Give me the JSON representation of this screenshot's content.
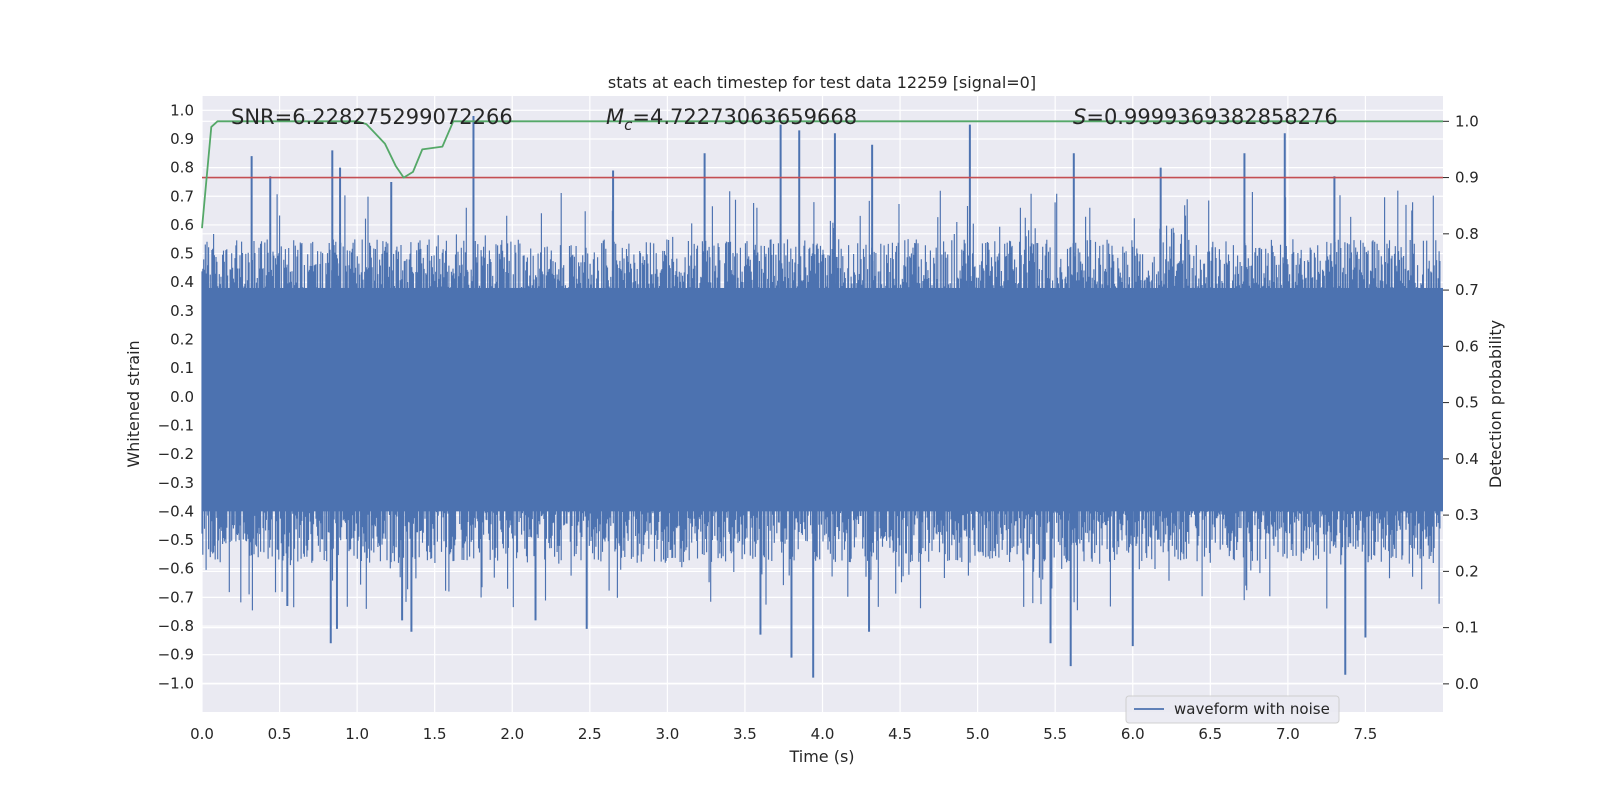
{
  "chart_data": {
    "type": "line",
    "title": "stats at each timestep for test data 12259 [signal=0]",
    "xlabel": "Time (s)",
    "ylabel": "Whitened strain",
    "y2label": "Detection probability",
    "xlim": [
      0.0,
      8.0
    ],
    "ylim": [
      -1.1,
      1.05
    ],
    "y2lim": [
      -0.05,
      1.045
    ],
    "xticks": [
      0.0,
      0.5,
      1.0,
      1.5,
      2.0,
      2.5,
      3.0,
      3.5,
      4.0,
      4.5,
      5.0,
      5.5,
      6.0,
      6.5,
      7.0,
      7.5
    ],
    "xtick_labels": [
      "0.0",
      "0.5",
      "1.0",
      "1.5",
      "2.0",
      "2.5",
      "3.0",
      "3.5",
      "4.0",
      "4.5",
      "5.0",
      "5.5",
      "6.0",
      "6.5",
      "7.0",
      "7.5"
    ],
    "yticks": [
      1.0,
      0.9,
      0.8,
      0.7,
      0.6,
      0.5,
      0.4,
      0.3,
      0.2,
      0.1,
      0.0,
      -0.1,
      -0.2,
      -0.3,
      -0.4,
      -0.5,
      -0.6,
      -0.7,
      -0.8,
      -0.9,
      -1.0
    ],
    "ytick_labels": [
      "1.0",
      "0.9",
      "0.8",
      "0.7",
      "0.6",
      "0.5",
      "0.4",
      "0.3",
      "0.2",
      "0.1",
      "0.0",
      "−0.1",
      "−0.2",
      "−0.3",
      "−0.4",
      "−0.5",
      "−0.6",
      "−0.7",
      "−0.8",
      "−0.9",
      "−1.0"
    ],
    "y2ticks": [
      1.0,
      0.9,
      0.8,
      0.7,
      0.6,
      0.5,
      0.4,
      0.3,
      0.2,
      0.1,
      0.0
    ],
    "y2tick_labels": [
      "1.0",
      "0.9",
      "0.8",
      "0.7",
      "0.6",
      "0.5",
      "0.4",
      "0.3",
      "0.2",
      "0.1",
      "0.0"
    ],
    "annotations": {
      "snr": "SNR=6.228275299072266",
      "mc_symbol": "M",
      "mc_subscript": "c",
      "mc_value": "=4.72273063659668",
      "s_symbol": "S",
      "s_value": "=0.9999369382858276"
    },
    "legend": {
      "label": "waveform with noise",
      "placement": "lower-right"
    },
    "series": [
      {
        "name": "waveform with noise",
        "axis": "left",
        "color": "#4c72b0",
        "kind": "noise",
        "noise_range": [
          -0.58,
          0.55
        ],
        "peaks": [
          [
            0.32,
            0.84
          ],
          [
            0.44,
            0.77
          ],
          [
            0.84,
            0.86
          ],
          [
            0.89,
            0.8
          ],
          [
            1.22,
            0.75
          ],
          [
            1.75,
            0.98
          ],
          [
            2.65,
            0.79
          ],
          [
            3.24,
            0.85
          ],
          [
            3.73,
            0.95
          ],
          [
            3.85,
            0.93
          ],
          [
            4.08,
            0.92
          ],
          [
            4.32,
            0.88
          ],
          [
            4.95,
            0.95
          ],
          [
            5.62,
            0.85
          ],
          [
            6.18,
            0.8
          ],
          [
            6.72,
            0.85
          ],
          [
            6.98,
            0.92
          ],
          [
            7.3,
            0.77
          ]
        ],
        "troughs": [
          [
            0.55,
            -0.73
          ],
          [
            0.83,
            -0.86
          ],
          [
            0.87,
            -0.81
          ],
          [
            1.29,
            -0.78
          ],
          [
            1.35,
            -0.82
          ],
          [
            2.15,
            -0.78
          ],
          [
            2.48,
            -0.81
          ],
          [
            3.6,
            -0.83
          ],
          [
            3.8,
            -0.91
          ],
          [
            3.94,
            -0.98
          ],
          [
            4.3,
            -0.82
          ],
          [
            5.47,
            -0.86
          ],
          [
            5.6,
            -0.94
          ],
          [
            6.0,
            -0.87
          ],
          [
            7.37,
            -0.97
          ],
          [
            7.5,
            -0.84
          ]
        ]
      },
      {
        "name": "Detection probability",
        "axis": "right",
        "color": "#55a868",
        "x": [
          0.0,
          0.06,
          0.1,
          0.13,
          0.4,
          0.8,
          1.0,
          1.06,
          1.18,
          1.25,
          1.3,
          1.36,
          1.42,
          1.55,
          1.62,
          1.7,
          2.0,
          2.5,
          3.0,
          4.0,
          5.0,
          6.0,
          7.0,
          8.0
        ],
        "y": [
          0.81,
          0.99,
          1.0,
          1.0,
          1.0,
          1.0,
          1.0,
          0.995,
          0.96,
          0.92,
          0.9,
          0.91,
          0.95,
          0.955,
          1.0,
          1.0,
          1.0,
          1.0,
          1.0,
          1.0,
          1.0,
          1.0,
          1.0,
          1.0
        ]
      },
      {
        "name": "threshold",
        "axis": "right",
        "color": "#c44e52",
        "x": [
          0.0,
          8.0
        ],
        "y": [
          0.9,
          0.9
        ]
      }
    ]
  }
}
